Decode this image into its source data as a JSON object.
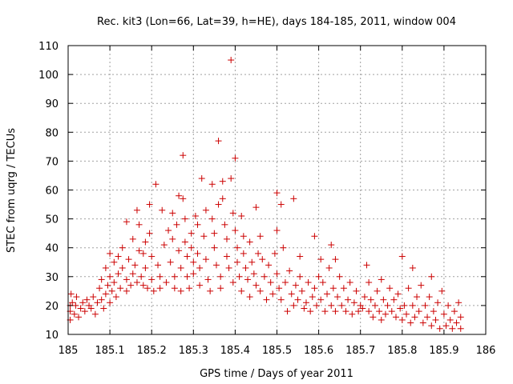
{
  "chart_data": {
    "type": "scatter",
    "title": "Rec. kit3 (Lon=66, Lat=39, h=HE), days 184-185, 2011, window 004",
    "xlabel": "GPS time / Days of year 2011",
    "ylabel": "STEC from uqrg / TECUs",
    "xlim": [
      185,
      186
    ],
    "ylim": [
      10,
      110
    ],
    "xticks": [
      "185",
      "185.1",
      "185.2",
      "185.3",
      "185.4",
      "185.5",
      "185.6",
      "185.7",
      "185.8",
      "185.9",
      "186"
    ],
    "yticks": [
      "10",
      "20",
      "30",
      "40",
      "50",
      "60",
      "70",
      "80",
      "90",
      "100",
      "110"
    ],
    "grid": true,
    "marker": "+",
    "color": "#cc0000",
    "series": [
      {
        "name": "STEC",
        "points": [
          [
            185.005,
            15
          ],
          [
            185.005,
            18
          ],
          [
            185.005,
            20
          ],
          [
            185.007,
            24
          ],
          [
            185.01,
            21
          ],
          [
            185.015,
            17
          ],
          [
            185.018,
            20
          ],
          [
            185.02,
            23
          ],
          [
            185.025,
            16
          ],
          [
            185.03,
            19
          ],
          [
            185.035,
            21
          ],
          [
            185.04,
            18
          ],
          [
            185.045,
            22
          ],
          [
            185.05,
            20
          ],
          [
            185.055,
            19
          ],
          [
            185.06,
            23
          ],
          [
            185.065,
            17
          ],
          [
            185.07,
            21
          ],
          [
            185.075,
            26
          ],
          [
            185.08,
            29
          ],
          [
            185.08,
            22
          ],
          [
            185.085,
            19
          ],
          [
            185.09,
            33
          ],
          [
            185.09,
            24
          ],
          [
            185.095,
            27
          ],
          [
            185.1,
            38
          ],
          [
            185.1,
            30
          ],
          [
            185.1,
            21
          ],
          [
            185.105,
            25
          ],
          [
            185.11,
            35
          ],
          [
            185.11,
            28
          ],
          [
            185.115,
            23
          ],
          [
            185.12,
            31
          ],
          [
            185.12,
            37
          ],
          [
            185.125,
            26
          ],
          [
            185.13,
            40
          ],
          [
            185.13,
            33
          ],
          [
            185.14,
            49
          ],
          [
            185.14,
            29
          ],
          [
            185.14,
            25
          ],
          [
            185.145,
            36
          ],
          [
            185.15,
            27
          ],
          [
            185.155,
            43
          ],
          [
            185.155,
            31
          ],
          [
            185.16,
            34
          ],
          [
            185.165,
            53
          ],
          [
            185.165,
            28
          ],
          [
            185.17,
            48
          ],
          [
            185.17,
            39
          ],
          [
            185.175,
            30
          ],
          [
            185.18,
            38
          ],
          [
            185.18,
            27
          ],
          [
            185.185,
            42
          ],
          [
            185.185,
            33
          ],
          [
            185.19,
            26
          ],
          [
            185.195,
            55
          ],
          [
            185.195,
            45
          ],
          [
            185.2,
            37
          ],
          [
            185.2,
            29
          ],
          [
            185.205,
            25
          ],
          [
            185.21,
            62
          ],
          [
            185.215,
            34
          ],
          [
            185.22,
            30
          ],
          [
            185.22,
            26
          ],
          [
            185.225,
            53
          ],
          [
            185.23,
            41
          ],
          [
            185.235,
            28
          ],
          [
            185.24,
            46
          ],
          [
            185.245,
            35
          ],
          [
            185.25,
            52
          ],
          [
            185.25,
            43
          ],
          [
            185.255,
            30
          ],
          [
            185.255,
            26
          ],
          [
            185.26,
            48
          ],
          [
            185.265,
            58
          ],
          [
            185.265,
            39
          ],
          [
            185.27,
            33
          ],
          [
            185.27,
            25
          ],
          [
            185.275,
            72
          ],
          [
            185.275,
            57
          ],
          [
            185.28,
            50
          ],
          [
            185.28,
            42
          ],
          [
            185.285,
            37
          ],
          [
            185.285,
            30
          ],
          [
            185.29,
            26
          ],
          [
            185.295,
            45
          ],
          [
            185.295,
            40
          ],
          [
            185.3,
            35
          ],
          [
            185.3,
            31
          ],
          [
            185.305,
            51
          ],
          [
            185.31,
            48
          ],
          [
            185.31,
            38
          ],
          [
            185.315,
            27
          ],
          [
            185.315,
            33
          ],
          [
            185.32,
            64
          ],
          [
            185.325,
            44
          ],
          [
            185.33,
            53
          ],
          [
            185.33,
            36
          ],
          [
            185.335,
            29
          ],
          [
            185.34,
            25
          ],
          [
            185.345,
            62
          ],
          [
            185.345,
            50
          ],
          [
            185.35,
            45
          ],
          [
            185.35,
            40
          ],
          [
            185.355,
            34
          ],
          [
            185.36,
            77
          ],
          [
            185.36,
            55
          ],
          [
            185.365,
            30
          ],
          [
            185.365,
            26
          ],
          [
            185.37,
            57
          ],
          [
            185.37,
            63
          ],
          [
            185.375,
            48
          ],
          [
            185.38,
            43
          ],
          [
            185.38,
            37
          ],
          [
            185.385,
            33
          ],
          [
            185.39,
            64
          ],
          [
            185.39,
            105
          ],
          [
            185.395,
            52
          ],
          [
            185.395,
            28
          ],
          [
            185.4,
            71
          ],
          [
            185.4,
            46
          ],
          [
            185.405,
            40
          ],
          [
            185.405,
            35
          ],
          [
            185.41,
            30
          ],
          [
            185.415,
            51
          ],
          [
            185.415,
            25
          ],
          [
            185.42,
            44
          ],
          [
            185.42,
            38
          ],
          [
            185.425,
            33
          ],
          [
            185.43,
            29
          ],
          [
            185.435,
            42
          ],
          [
            185.435,
            23
          ],
          [
            185.44,
            35
          ],
          [
            185.445,
            31
          ],
          [
            185.45,
            54
          ],
          [
            185.45,
            27
          ],
          [
            185.455,
            38
          ],
          [
            185.46,
            44
          ],
          [
            185.46,
            25
          ],
          [
            185.465,
            36
          ],
          [
            185.47,
            30
          ],
          [
            185.475,
            22
          ],
          [
            185.48,
            34
          ],
          [
            185.485,
            28
          ],
          [
            185.49,
            24
          ],
          [
            185.495,
            38
          ],
          [
            185.5,
            59
          ],
          [
            185.5,
            46
          ],
          [
            185.5,
            31
          ],
          [
            185.505,
            26
          ],
          [
            185.51,
            55
          ],
          [
            185.51,
            22
          ],
          [
            185.515,
            40
          ],
          [
            185.52,
            28
          ],
          [
            185.525,
            18
          ],
          [
            185.53,
            32
          ],
          [
            185.535,
            24
          ],
          [
            185.54,
            57
          ],
          [
            185.54,
            20
          ],
          [
            185.545,
            27
          ],
          [
            185.55,
            22
          ],
          [
            185.555,
            37
          ],
          [
            185.555,
            30
          ],
          [
            185.56,
            25
          ],
          [
            185.565,
            19
          ],
          [
            185.57,
            21
          ],
          [
            185.575,
            28
          ],
          [
            185.58,
            18
          ],
          [
            185.585,
            23
          ],
          [
            185.59,
            44
          ],
          [
            185.59,
            26
          ],
          [
            185.595,
            20
          ],
          [
            185.6,
            30
          ],
          [
            185.605,
            36
          ],
          [
            185.605,
            22
          ],
          [
            185.61,
            28
          ],
          [
            185.615,
            18
          ],
          [
            185.62,
            24
          ],
          [
            185.625,
            33
          ],
          [
            185.63,
            41
          ],
          [
            185.63,
            20
          ],
          [
            185.635,
            26
          ],
          [
            185.64,
            36
          ],
          [
            185.64,
            18
          ],
          [
            185.645,
            23
          ],
          [
            185.65,
            30
          ],
          [
            185.655,
            20
          ],
          [
            185.66,
            26
          ],
          [
            185.665,
            18
          ],
          [
            185.67,
            22
          ],
          [
            185.675,
            28
          ],
          [
            185.68,
            17
          ],
          [
            185.685,
            21
          ],
          [
            185.69,
            25
          ],
          [
            185.695,
            18
          ],
          [
            185.7,
            20
          ],
          [
            185.705,
            19
          ],
          [
            185.71,
            23
          ],
          [
            185.715,
            34
          ],
          [
            185.72,
            28
          ],
          [
            185.72,
            18
          ],
          [
            185.725,
            22
          ],
          [
            185.73,
            16
          ],
          [
            185.735,
            20
          ],
          [
            185.74,
            25
          ],
          [
            185.745,
            18
          ],
          [
            185.75,
            29
          ],
          [
            185.75,
            15
          ],
          [
            185.755,
            22
          ],
          [
            185.76,
            17
          ],
          [
            185.765,
            20
          ],
          [
            185.77,
            26
          ],
          [
            185.775,
            18
          ],
          [
            185.78,
            22
          ],
          [
            185.785,
            16
          ],
          [
            185.79,
            24
          ],
          [
            185.795,
            19
          ],
          [
            185.8,
            37
          ],
          [
            185.8,
            15
          ],
          [
            185.805,
            20
          ],
          [
            185.81,
            17
          ],
          [
            185.815,
            26
          ],
          [
            185.82,
            14
          ],
          [
            185.825,
            33
          ],
          [
            185.825,
            20
          ],
          [
            185.83,
            16
          ],
          [
            185.835,
            23
          ],
          [
            185.84,
            18
          ],
          [
            185.845,
            27
          ],
          [
            185.85,
            14
          ],
          [
            185.855,
            20
          ],
          [
            185.86,
            16
          ],
          [
            185.865,
            23
          ],
          [
            185.87,
            30
          ],
          [
            185.87,
            13
          ],
          [
            185.875,
            18
          ],
          [
            185.88,
            15
          ],
          [
            185.885,
            21
          ],
          [
            185.89,
            12
          ],
          [
            185.895,
            25
          ],
          [
            185.9,
            17
          ],
          [
            185.905,
            13
          ],
          [
            185.91,
            20
          ],
          [
            185.915,
            15
          ],
          [
            185.92,
            12
          ],
          [
            185.925,
            18
          ],
          [
            185.93,
            14
          ],
          [
            185.935,
            21
          ],
          [
            185.94,
            12
          ],
          [
            185.94,
            16
          ]
        ]
      }
    ]
  }
}
